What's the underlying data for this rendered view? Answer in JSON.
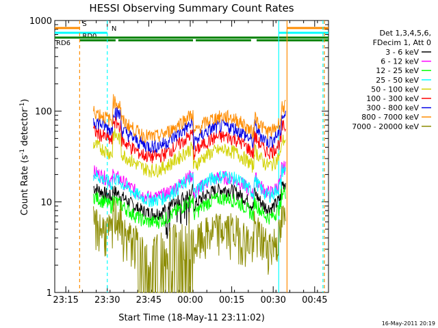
{
  "chart_data": {
    "type": "line",
    "title": "HESSI Observing Summary Count Rates",
    "xlabel": "Start Time (18-May-11 23:11:02)",
    "ylabel": "Count Rate (s⁻¹ detector⁻¹)",
    "ylabel_parts": {
      "main": "Count Rate (s",
      "sup1": "-1",
      "mid": " detector",
      "sup2": "-1",
      "end": ")"
    },
    "yscale": "log",
    "ylim": [
      1,
      1000
    ],
    "xlim_minutes_after_23_11": [
      0,
      99
    ],
    "x_ticks": [
      {
        "label": "23:15",
        "t": 4
      },
      {
        "label": "23:30",
        "t": 19
      },
      {
        "label": "23:45",
        "t": 34
      },
      {
        "label": "00:00",
        "t": 49
      },
      {
        "label": "00:15",
        "t": 64
      },
      {
        "label": "00:30",
        "t": 79
      },
      {
        "label": "00:45",
        "t": 94
      }
    ],
    "y_ticks": [
      {
        "label": "1",
        "v": 1
      },
      {
        "label": "10",
        "v": 10
      },
      {
        "label": "100",
        "v": 100
      },
      {
        "label": "1000",
        "v": 1000
      }
    ],
    "legend_title": [
      "Det 1,3,4,5,6,",
      "FDecim 1, Att 0"
    ],
    "legend_placement": "top-right outside",
    "series": [
      {
        "name": "3 - 6 keV",
        "color": "#000000"
      },
      {
        "name": "6 - 12 keV",
        "color": "#ff00ff"
      },
      {
        "name": "12 - 25 keV",
        "color": "#00ff00"
      },
      {
        "name": "25 - 50 keV",
        "color": "#00ffff"
      },
      {
        "name": "50 - 100 keV",
        "color": "#d2d200"
      },
      {
        "name": "100 - 300 keV",
        "color": "#ff0000"
      },
      {
        "name": "300 - 800 keV",
        "color": "#0000e6"
      },
      {
        "name": "800 - 7000 keV",
        "color": "#ff8c00"
      },
      {
        "name": "7000 - 20000 keV",
        "color": "#8b8b00"
      }
    ],
    "flags": [
      {
        "label": "S",
        "color": "#ff8c00",
        "segments": [
          [
            0,
            9
          ],
          [
            84,
            99
          ]
        ]
      },
      {
        "label": "N",
        "color": "#00ffff",
        "segments": [
          [
            0,
            19
          ],
          [
            81,
            99
          ]
        ]
      },
      {
        "label": "RD0",
        "color": "#008000",
        "segments": [
          [
            9,
            22
          ],
          [
            23,
            50
          ],
          [
            51,
            71
          ],
          [
            73,
            99
          ]
        ]
      },
      {
        "label": "RD6",
        "color": "#008000",
        "segments": [
          [
            0,
            99
          ]
        ]
      }
    ],
    "vertical_markers": [
      {
        "t": 9,
        "color": "#ff8c00",
        "style": "dashed"
      },
      {
        "t": 19,
        "color": "#00ffff",
        "style": "dashed"
      },
      {
        "t": 81,
        "color": "#00ffff",
        "style": "solid"
      },
      {
        "t": 84,
        "color": "#ff8c00",
        "style": "solid"
      },
      {
        "t": 97,
        "color": "#00ffff",
        "style": "dashed"
      },
      {
        "t": 97.5,
        "color": "#ff8c00",
        "style": "dashed"
      }
    ],
    "grid": false
  },
  "footer_timestamp": "16-May-2011 20:19"
}
